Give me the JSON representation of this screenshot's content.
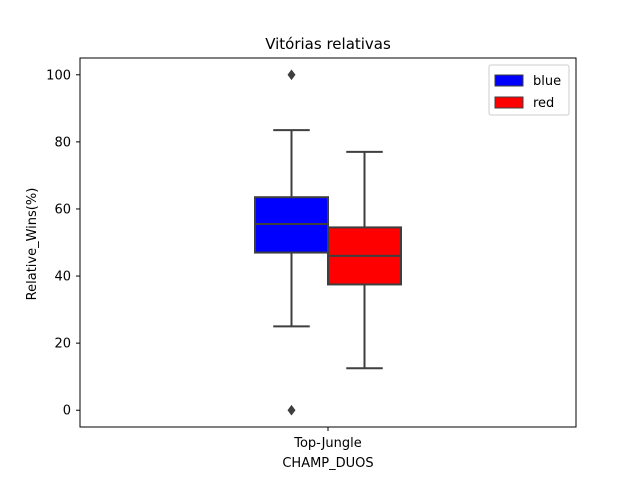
{
  "chart_data": {
    "type": "box",
    "title": "Vitórias relativas",
    "xlabel": "CHAMP_DUOS",
    "ylabel": "Relative_Wins(%)",
    "categories": [
      "Top-Jungle"
    ],
    "ylim": [
      -5,
      105
    ],
    "yticks": [
      0,
      20,
      40,
      60,
      80,
      100
    ],
    "grid": false,
    "legend_position": "top-right",
    "series": [
      {
        "name": "blue",
        "color": "#0000ff",
        "boxes": [
          {
            "category": "Top-Jungle",
            "whisker_low": 25,
            "q1": 47,
            "median": 55.5,
            "q3": 63.5,
            "whisker_high": 83.5,
            "outliers": [
              100,
              0
            ]
          }
        ]
      },
      {
        "name": "red",
        "color": "#ff0000",
        "boxes": [
          {
            "category": "Top-Jungle",
            "whisker_low": 12.5,
            "q1": 37.5,
            "median": 46,
            "q3": 54.5,
            "whisker_high": 77,
            "outliers": []
          }
        ]
      }
    ]
  }
}
